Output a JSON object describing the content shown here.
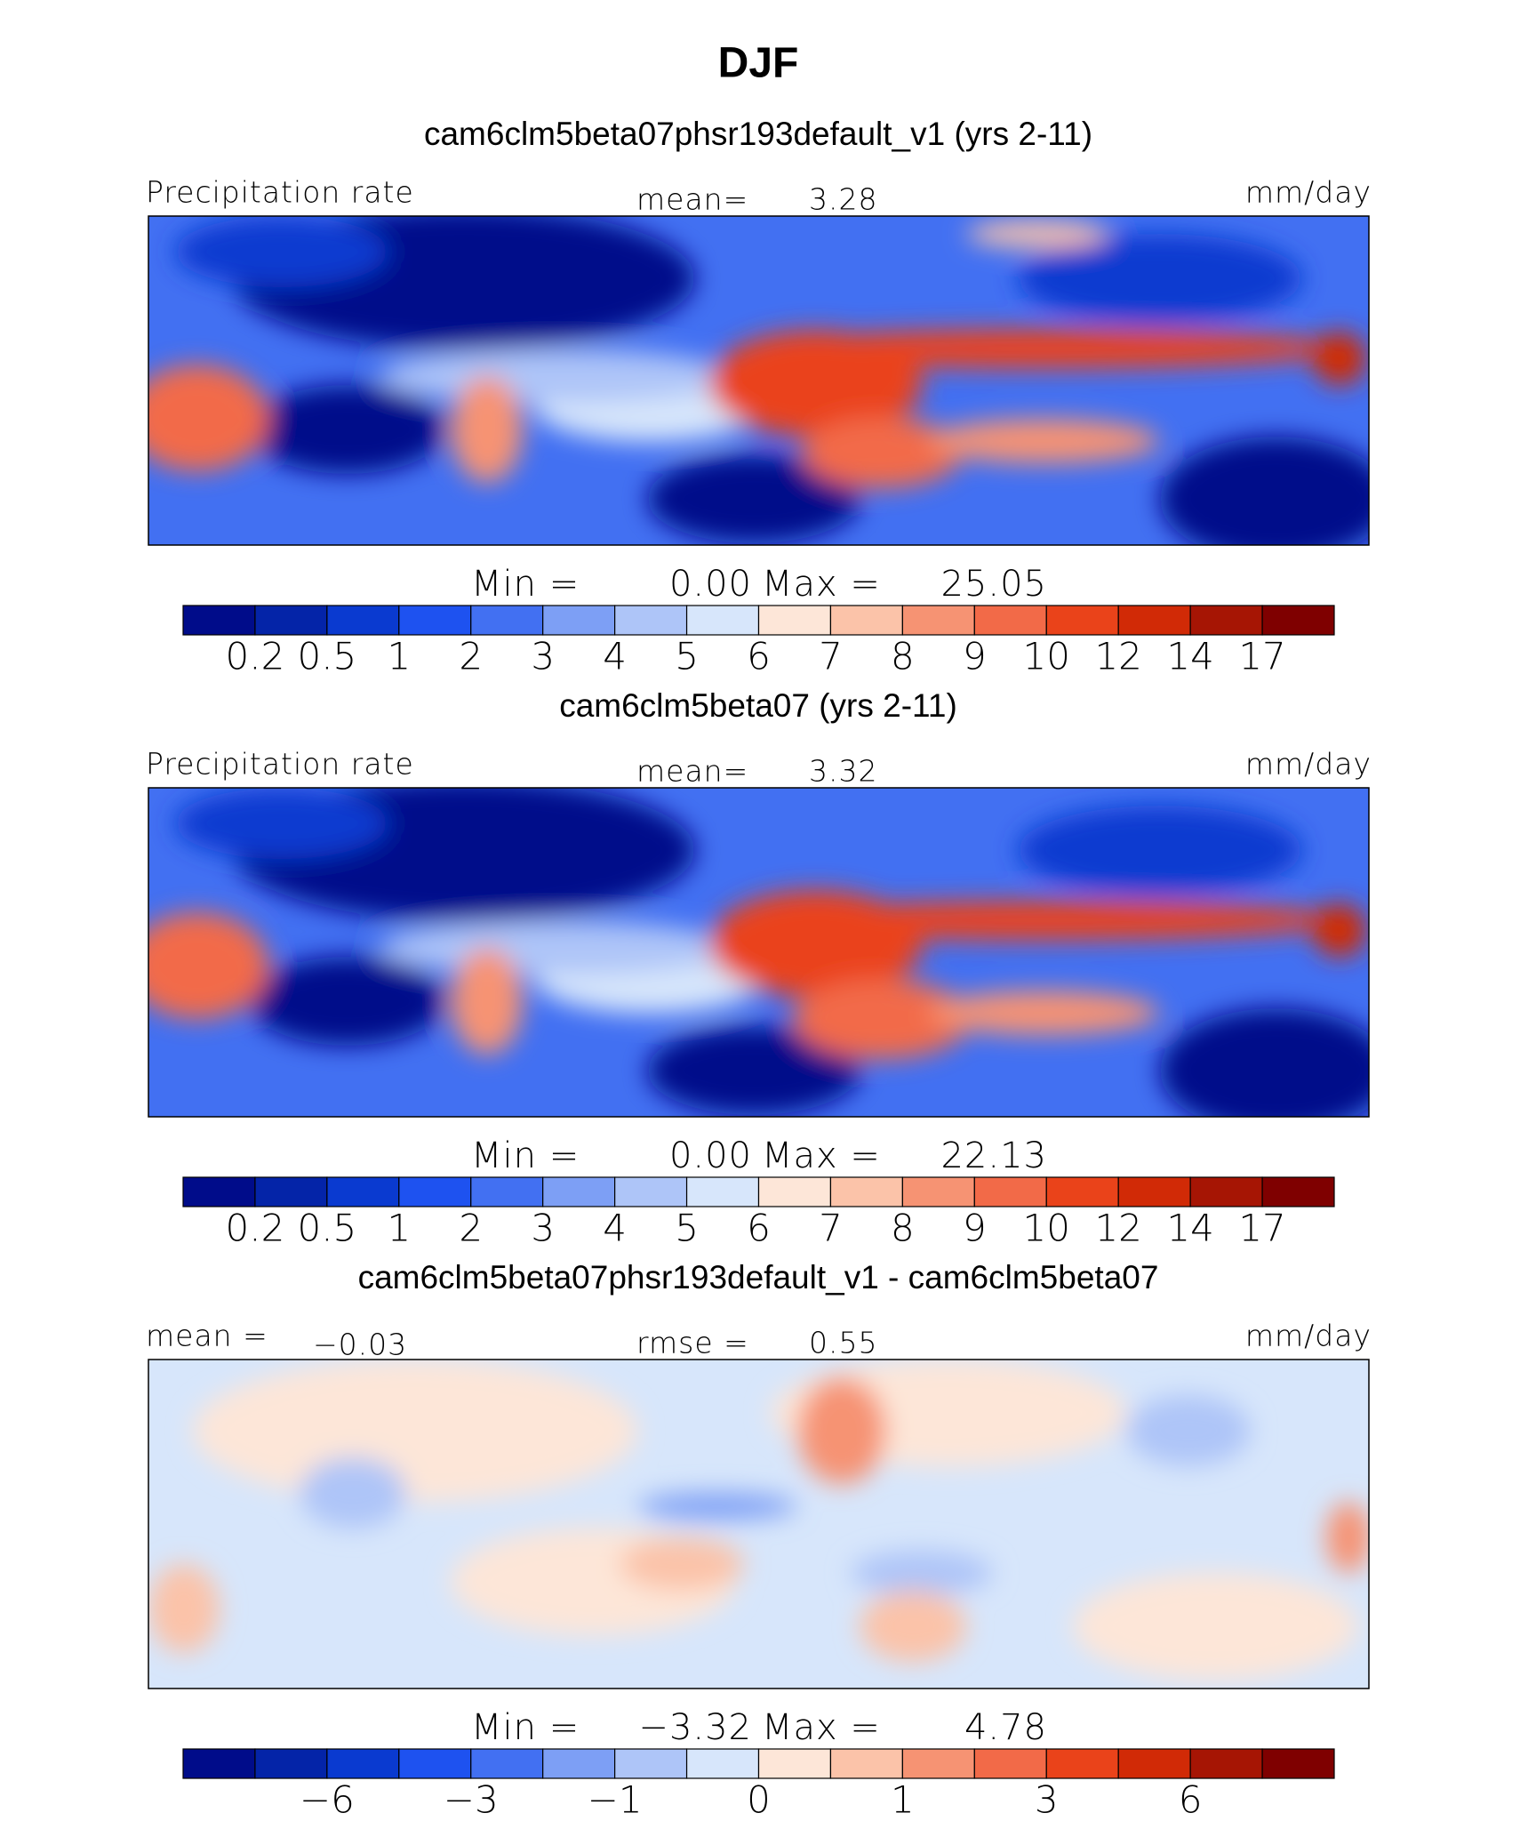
{
  "title": "DJF",
  "panels": [
    {
      "subtitle": "cam6clm5beta07phsr193default_v1 (yrs 2-11)",
      "left": "Precipitation rate",
      "center_label": "mean=",
      "center_value": "3.28",
      "units": "mm/day",
      "min_label": "Min  =",
      "min": "0.00",
      "max_label": "Max  =",
      "max": "25.05",
      "colorbar": {
        "colors": [
          "#000c8a",
          "#0424a8",
          "#0a3ad0",
          "#1e52f0",
          "#4270f2",
          "#7d9ff5",
          "#aec5f8",
          "#d7e6fb",
          "#fde6d8",
          "#fbc3a9",
          "#f69373",
          "#f26a48",
          "#ea431a",
          "#d12a06",
          "#a61504",
          "#7f0000"
        ],
        "labels": [
          "0.2",
          "0.5",
          "1",
          "2",
          "3",
          "4",
          "5",
          "6",
          "7",
          "8",
          "9",
          "10",
          "12",
          "14",
          "17"
        ]
      }
    },
    {
      "subtitle": "cam6clm5beta07 (yrs 2-11)",
      "left": "Precipitation rate",
      "center_label": "mean=",
      "center_value": "3.32",
      "units": "mm/day",
      "min_label": "Min  =",
      "min": "0.00",
      "max_label": "Max  =",
      "max": "22.13",
      "colorbar": {
        "colors": [
          "#000c8a",
          "#0424a8",
          "#0a3ad0",
          "#1e52f0",
          "#4270f2",
          "#7d9ff5",
          "#aec5f8",
          "#d7e6fb",
          "#fde6d8",
          "#fbc3a9",
          "#f69373",
          "#f26a48",
          "#ea431a",
          "#d12a06",
          "#a61504",
          "#7f0000"
        ],
        "labels": [
          "0.2",
          "0.5",
          "1",
          "2",
          "3",
          "4",
          "5",
          "6",
          "7",
          "8",
          "9",
          "10",
          "12",
          "14",
          "17"
        ]
      }
    },
    {
      "subtitle": "cam6clm5beta07phsr193default_v1 - cam6clm5beta07",
      "left": "mean =",
      "left_value": "−0.03",
      "center_label": "rmse =",
      "center_value": "0.55",
      "units": "mm/day",
      "min_label": "Min  =",
      "min": "−3.32",
      "max_label": "Max  =",
      "max": "4.78",
      "colorbar": {
        "colors": [
          "#000c8a",
          "#0424a8",
          "#0a3ad0",
          "#1e52f0",
          "#4270f2",
          "#7d9ff5",
          "#aec5f8",
          "#d7e6fb",
          "#fde6d8",
          "#fbc3a9",
          "#f69373",
          "#f26a48",
          "#ea431a",
          "#d12a06",
          "#a61504",
          "#7f0000"
        ],
        "labels": [
          null,
          "−6",
          null,
          "−3",
          null,
          "−1",
          null,
          "0",
          null,
          "1",
          null,
          "3",
          null,
          "6",
          null
        ]
      }
    }
  ]
}
